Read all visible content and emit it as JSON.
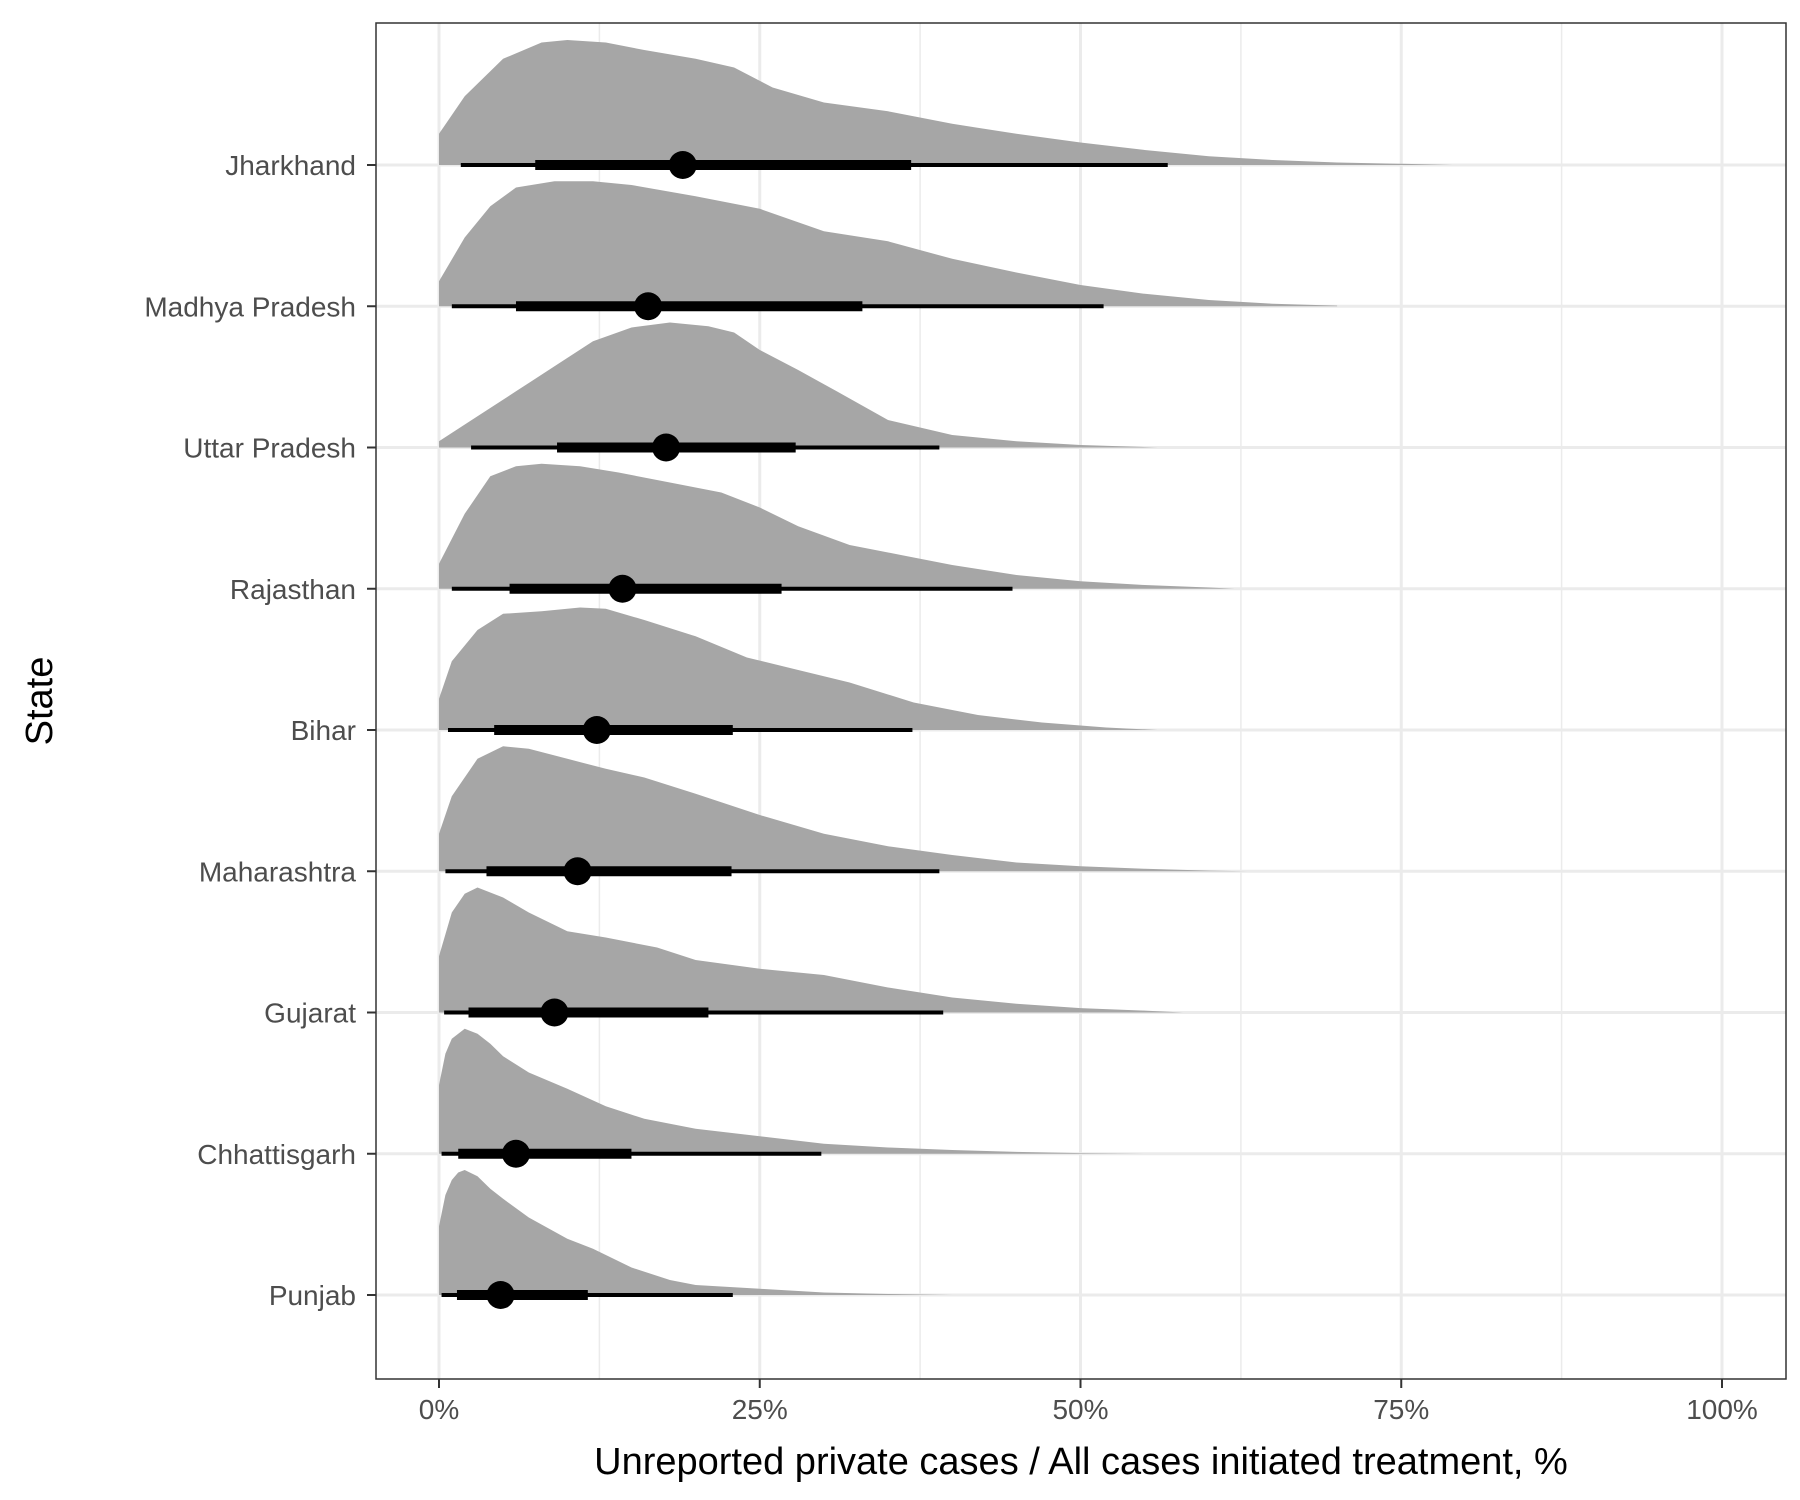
{
  "chart_data": {
    "type": "halfeye",
    "xlabel": "Unreported private cases / All cases initiated treatment, %",
    "ylabel": "State",
    "xlim": [
      -0.05,
      1.05
    ],
    "x_ticks": [
      0,
      0.25,
      0.5,
      0.75,
      1.0
    ],
    "x_tick_labels": [
      "0%",
      "25%",
      "50%",
      "75%",
      "100%"
    ],
    "x_minor_ticks": [
      0.125,
      0.375,
      0.625,
      0.875
    ],
    "grid": true,
    "colors": {
      "density": "#a6a6a6",
      "interval": "#000000",
      "grid": "#ebebeb",
      "panel_border": "#333333"
    },
    "categories": [
      "Jharkhand",
      "Madhya Pradesh",
      "Uttar Pradesh",
      "Rajasthan",
      "Bihar",
      "Maharashtra",
      "Gujarat",
      "Chhattisgarh",
      "Punjab"
    ],
    "series": [
      {
        "category": "Jharkhand",
        "point": 0.19,
        "interval_66": [
          0.075,
          0.368
        ],
        "interval_95": [
          0.017,
          0.568
        ],
        "density": [
          [
            0,
            0.25
          ],
          [
            0.02,
            0.55
          ],
          [
            0.05,
            0.85
          ],
          [
            0.08,
            0.98
          ],
          [
            0.1,
            1.0
          ],
          [
            0.13,
            0.98
          ],
          [
            0.16,
            0.92
          ],
          [
            0.2,
            0.85
          ],
          [
            0.23,
            0.78
          ],
          [
            0.26,
            0.62
          ],
          [
            0.3,
            0.5
          ],
          [
            0.35,
            0.43
          ],
          [
            0.4,
            0.33
          ],
          [
            0.45,
            0.25
          ],
          [
            0.5,
            0.18
          ],
          [
            0.55,
            0.12
          ],
          [
            0.6,
            0.07
          ],
          [
            0.65,
            0.04
          ],
          [
            0.7,
            0.02
          ],
          [
            0.75,
            0.01
          ],
          [
            0.79,
            0
          ]
        ]
      },
      {
        "category": "Madhya Pradesh",
        "point": 0.163,
        "interval_66": [
          0.06,
          0.33
        ],
        "interval_95": [
          0.01,
          0.518
        ],
        "density": [
          [
            0,
            0.2
          ],
          [
            0.02,
            0.55
          ],
          [
            0.04,
            0.8
          ],
          [
            0.06,
            0.95
          ],
          [
            0.09,
            1.0
          ],
          [
            0.12,
            1.0
          ],
          [
            0.15,
            0.97
          ],
          [
            0.2,
            0.88
          ],
          [
            0.25,
            0.78
          ],
          [
            0.3,
            0.6
          ],
          [
            0.35,
            0.52
          ],
          [
            0.4,
            0.38
          ],
          [
            0.45,
            0.27
          ],
          [
            0.5,
            0.17
          ],
          [
            0.55,
            0.1
          ],
          [
            0.6,
            0.05
          ],
          [
            0.65,
            0.02
          ],
          [
            0.7,
            0.005
          ]
        ]
      },
      {
        "category": "Uttar Pradesh",
        "point": 0.177,
        "interval_66": [
          0.092,
          0.278
        ],
        "interval_95": [
          0.025,
          0.39
        ],
        "density": [
          [
            0,
            0.05
          ],
          [
            0.03,
            0.25
          ],
          [
            0.06,
            0.45
          ],
          [
            0.09,
            0.65
          ],
          [
            0.12,
            0.85
          ],
          [
            0.15,
            0.96
          ],
          [
            0.18,
            1.0
          ],
          [
            0.21,
            0.97
          ],
          [
            0.23,
            0.92
          ],
          [
            0.25,
            0.78
          ],
          [
            0.28,
            0.62
          ],
          [
            0.31,
            0.45
          ],
          [
            0.35,
            0.22
          ],
          [
            0.4,
            0.1
          ],
          [
            0.45,
            0.05
          ],
          [
            0.5,
            0.02
          ],
          [
            0.56,
            0
          ]
        ]
      },
      {
        "category": "Rajasthan",
        "point": 0.143,
        "interval_66": [
          0.055,
          0.267
        ],
        "interval_95": [
          0.01,
          0.447
        ],
        "density": [
          [
            0,
            0.2
          ],
          [
            0.02,
            0.6
          ],
          [
            0.04,
            0.9
          ],
          [
            0.06,
            0.98
          ],
          [
            0.08,
            1.0
          ],
          [
            0.11,
            0.98
          ],
          [
            0.14,
            0.93
          ],
          [
            0.18,
            0.85
          ],
          [
            0.22,
            0.77
          ],
          [
            0.25,
            0.65
          ],
          [
            0.28,
            0.5
          ],
          [
            0.32,
            0.35
          ],
          [
            0.36,
            0.27
          ],
          [
            0.4,
            0.19
          ],
          [
            0.45,
            0.11
          ],
          [
            0.5,
            0.06
          ],
          [
            0.55,
            0.03
          ],
          [
            0.6,
            0.01
          ],
          [
            0.62,
            0
          ]
        ]
      },
      {
        "category": "Bihar",
        "point": 0.123,
        "interval_66": [
          0.043,
          0.229
        ],
        "interval_95": [
          0.007,
          0.369
        ],
        "density": [
          [
            0,
            0.25
          ],
          [
            0.01,
            0.55
          ],
          [
            0.03,
            0.8
          ],
          [
            0.05,
            0.93
          ],
          [
            0.08,
            0.95
          ],
          [
            0.11,
            0.98
          ],
          [
            0.13,
            0.97
          ],
          [
            0.16,
            0.88
          ],
          [
            0.2,
            0.75
          ],
          [
            0.24,
            0.58
          ],
          [
            0.28,
            0.48
          ],
          [
            0.32,
            0.38
          ],
          [
            0.37,
            0.22
          ],
          [
            0.42,
            0.12
          ],
          [
            0.47,
            0.06
          ],
          [
            0.52,
            0.02
          ],
          [
            0.56,
            0
          ]
        ]
      },
      {
        "category": "Maharashtra",
        "point": 0.108,
        "interval_66": [
          0.037,
          0.228
        ],
        "interval_95": [
          0.005,
          0.39
        ],
        "density": [
          [
            0,
            0.3
          ],
          [
            0.01,
            0.6
          ],
          [
            0.03,
            0.9
          ],
          [
            0.05,
            1.0
          ],
          [
            0.07,
            0.98
          ],
          [
            0.1,
            0.9
          ],
          [
            0.13,
            0.82
          ],
          [
            0.16,
            0.75
          ],
          [
            0.2,
            0.62
          ],
          [
            0.25,
            0.45
          ],
          [
            0.3,
            0.3
          ],
          [
            0.35,
            0.2
          ],
          [
            0.4,
            0.13
          ],
          [
            0.45,
            0.07
          ],
          [
            0.5,
            0.04
          ],
          [
            0.55,
            0.02
          ],
          [
            0.6,
            0.005
          ],
          [
            0.63,
            0
          ]
        ]
      },
      {
        "category": "Gujarat",
        "point": 0.09,
        "interval_66": [
          0.023,
          0.21
        ],
        "interval_95": [
          0.004,
          0.393
        ],
        "density": [
          [
            0,
            0.45
          ],
          [
            0.01,
            0.8
          ],
          [
            0.02,
            0.95
          ],
          [
            0.03,
            1.0
          ],
          [
            0.05,
            0.92
          ],
          [
            0.07,
            0.8
          ],
          [
            0.1,
            0.65
          ],
          [
            0.13,
            0.6
          ],
          [
            0.17,
            0.52
          ],
          [
            0.2,
            0.42
          ],
          [
            0.25,
            0.35
          ],
          [
            0.3,
            0.3
          ],
          [
            0.35,
            0.2
          ],
          [
            0.4,
            0.12
          ],
          [
            0.45,
            0.07
          ],
          [
            0.5,
            0.035
          ],
          [
            0.55,
            0.015
          ],
          [
            0.58,
            0
          ]
        ]
      },
      {
        "category": "Chhattisgarh",
        "point": 0.06,
        "interval_66": [
          0.015,
          0.15
        ],
        "interval_95": [
          0.002,
          0.298
        ],
        "density": [
          [
            0,
            0.55
          ],
          [
            0.005,
            0.8
          ],
          [
            0.01,
            0.92
          ],
          [
            0.02,
            1.0
          ],
          [
            0.03,
            0.96
          ],
          [
            0.04,
            0.88
          ],
          [
            0.05,
            0.78
          ],
          [
            0.07,
            0.65
          ],
          [
            0.1,
            0.52
          ],
          [
            0.13,
            0.38
          ],
          [
            0.16,
            0.28
          ],
          [
            0.2,
            0.2
          ],
          [
            0.25,
            0.14
          ],
          [
            0.3,
            0.08
          ],
          [
            0.35,
            0.05
          ],
          [
            0.4,
            0.03
          ],
          [
            0.45,
            0.015
          ],
          [
            0.5,
            0.005
          ],
          [
            0.55,
            0
          ]
        ]
      },
      {
        "category": "Punjab",
        "point": 0.048,
        "interval_66": [
          0.014,
          0.116
        ],
        "interval_95": [
          0.002,
          0.229
        ],
        "density": [
          [
            0,
            0.55
          ],
          [
            0.005,
            0.8
          ],
          [
            0.01,
            0.92
          ],
          [
            0.015,
            0.98
          ],
          [
            0.02,
            1.0
          ],
          [
            0.03,
            0.95
          ],
          [
            0.04,
            0.85
          ],
          [
            0.05,
            0.77
          ],
          [
            0.07,
            0.62
          ],
          [
            0.1,
            0.45
          ],
          [
            0.12,
            0.37
          ],
          [
            0.15,
            0.22
          ],
          [
            0.18,
            0.12
          ],
          [
            0.2,
            0.08
          ],
          [
            0.25,
            0.05
          ],
          [
            0.3,
            0.02
          ],
          [
            0.35,
            0.008
          ],
          [
            0.4,
            0
          ]
        ]
      }
    ]
  }
}
